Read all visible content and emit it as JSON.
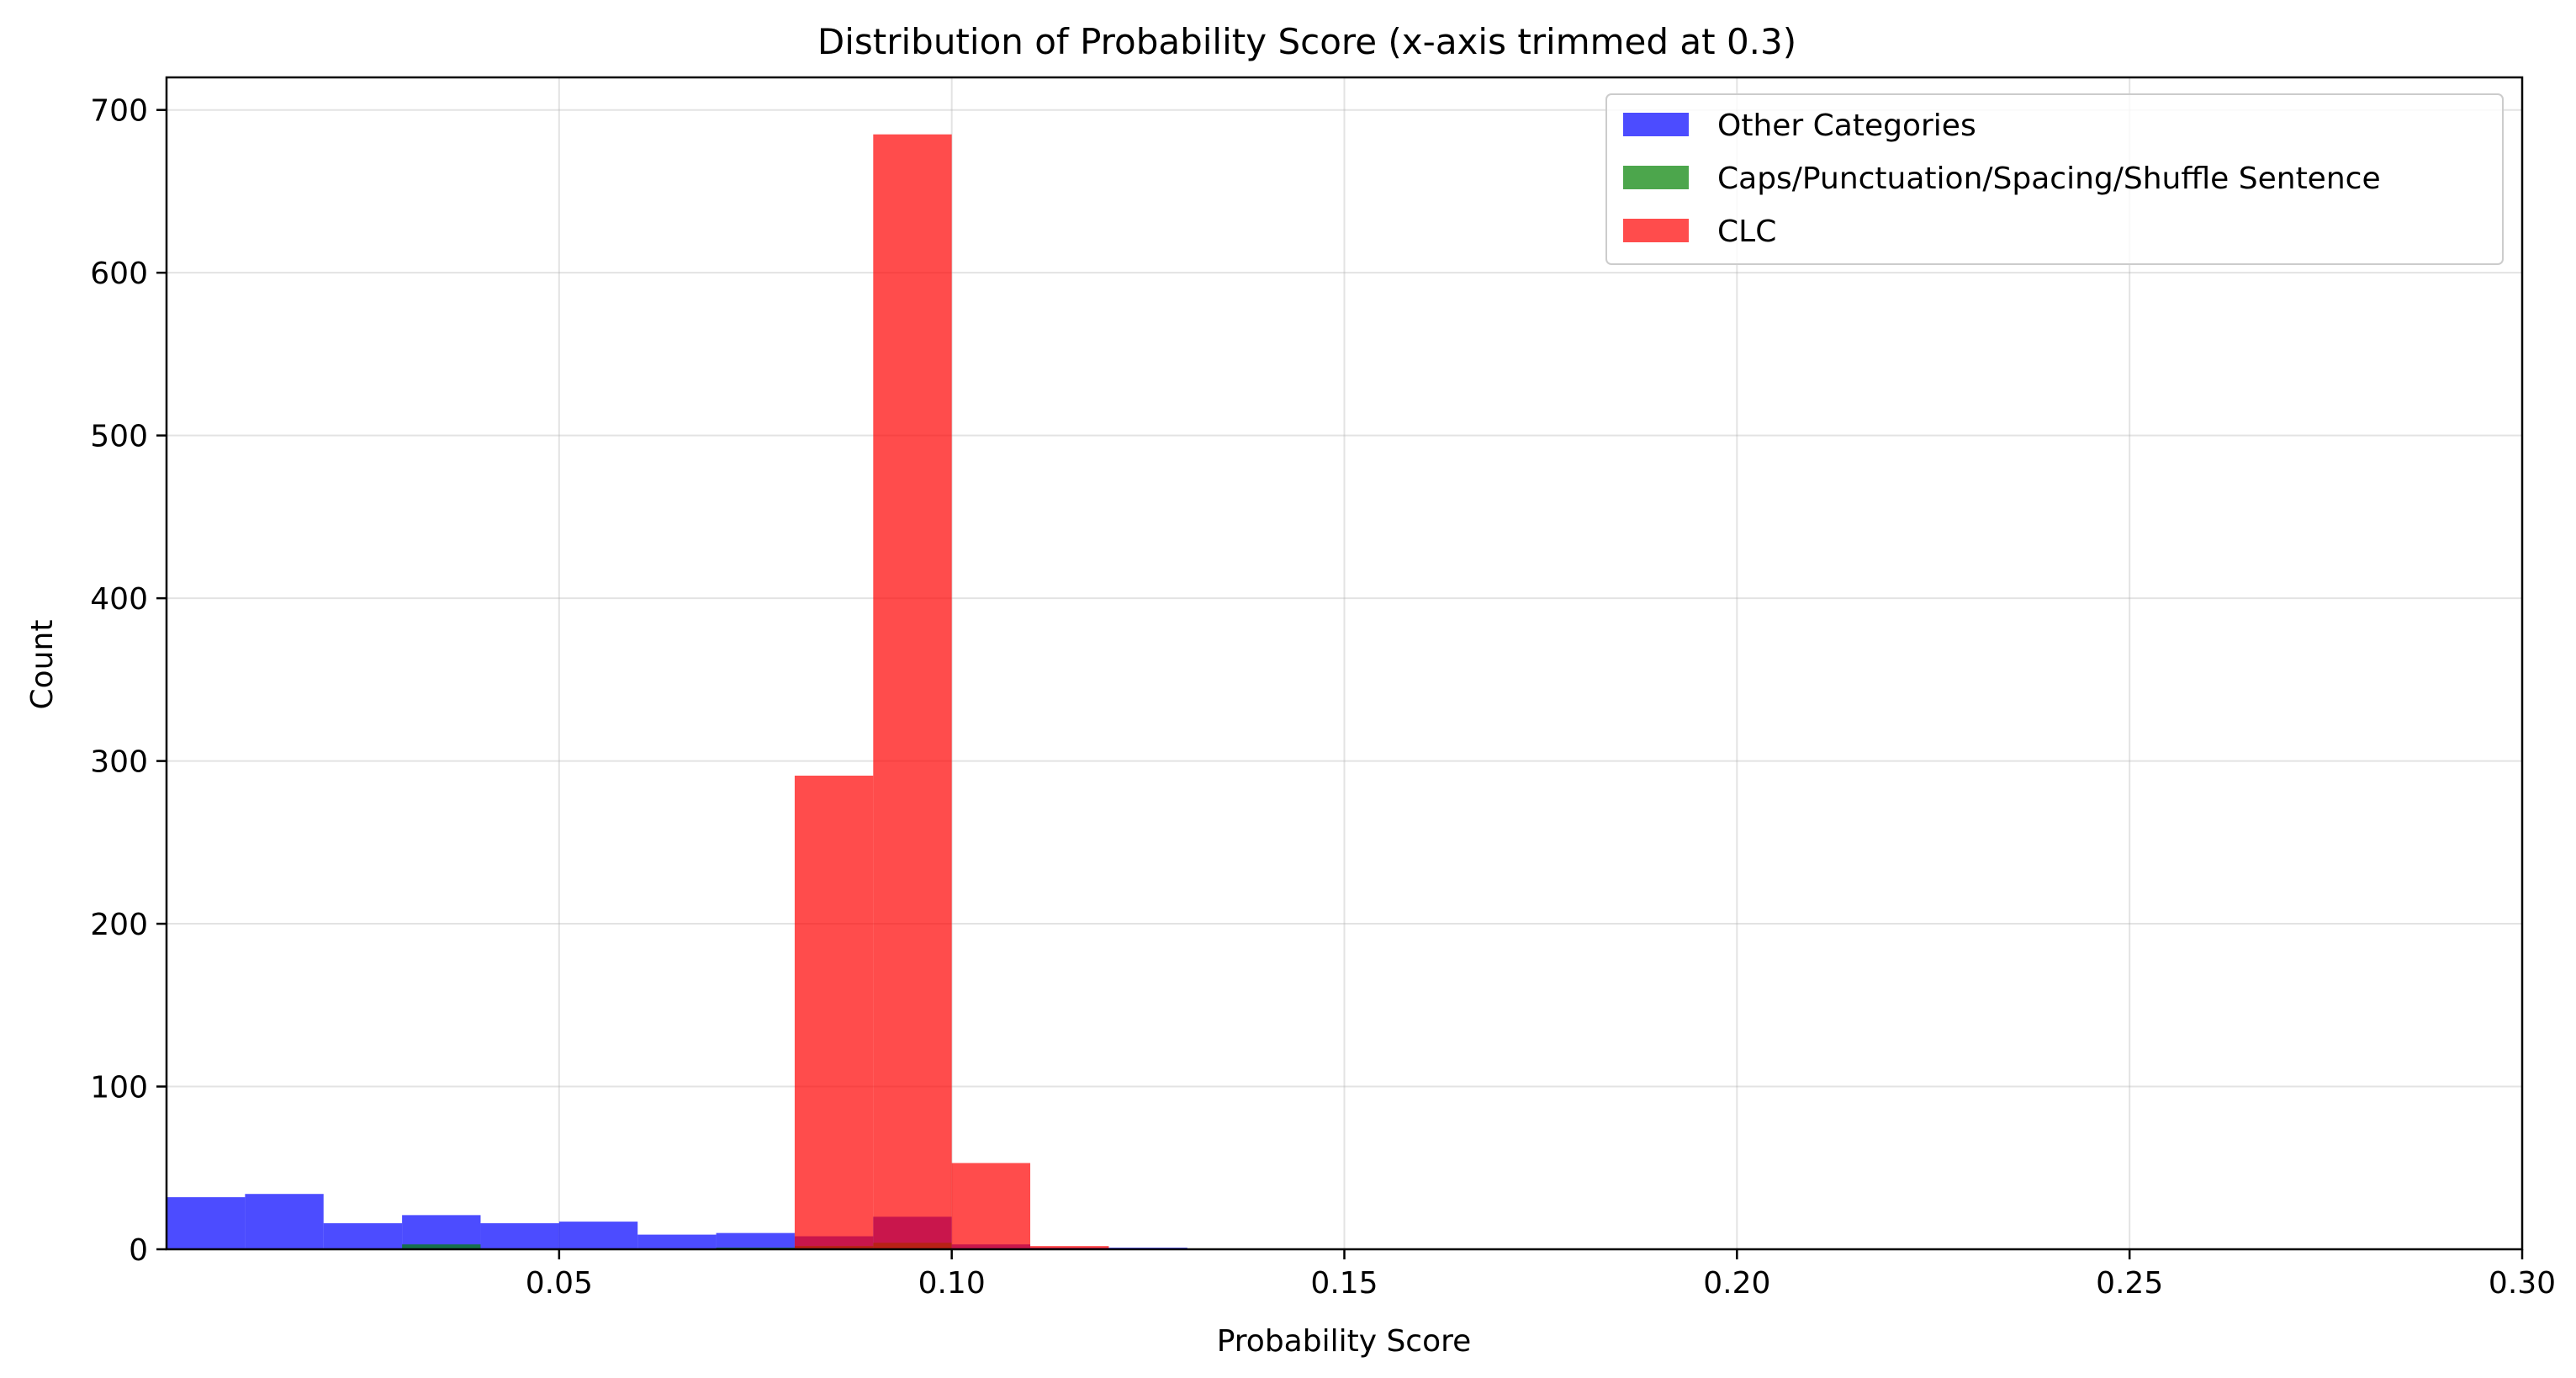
{
  "chart_data": {
    "type": "bar",
    "title": "Distribution of Probability Score (x-axis trimmed at 0.3)",
    "xlabel": "Probability Score",
    "ylabel": "Count",
    "xlim": [
      0.0,
      0.3
    ],
    "ylim": [
      0,
      720
    ],
    "xticks": [
      0.05,
      0.1,
      0.15,
      0.2,
      0.25,
      0.3
    ],
    "xtick_labels": [
      "0.05",
      "0.10",
      "0.15",
      "0.20",
      "0.25",
      "0.30"
    ],
    "yticks": [
      0,
      100,
      200,
      300,
      400,
      500,
      600,
      700
    ],
    "ytick_labels": [
      "0",
      "100",
      "200",
      "300",
      "400",
      "500",
      "600",
      "700"
    ],
    "grid": true,
    "legend_position": "top-right",
    "series": [
      {
        "name": "Other Categories",
        "color": "#0000ff",
        "opacity": 0.7,
        "bins": [
          {
            "x0": 0.0,
            "x1": 0.01,
            "count": 32
          },
          {
            "x0": 0.01,
            "x1": 0.02,
            "count": 34
          },
          {
            "x0": 0.02,
            "x1": 0.03,
            "count": 16
          },
          {
            "x0": 0.03,
            "x1": 0.04,
            "count": 21
          },
          {
            "x0": 0.04,
            "x1": 0.05,
            "count": 16
          },
          {
            "x0": 0.05,
            "x1": 0.06,
            "count": 17
          },
          {
            "x0": 0.06,
            "x1": 0.07,
            "count": 9
          },
          {
            "x0": 0.07,
            "x1": 0.08,
            "count": 10
          },
          {
            "x0": 0.08,
            "x1": 0.09,
            "count": 8
          },
          {
            "x0": 0.09,
            "x1": 0.1,
            "count": 20
          },
          {
            "x0": 0.1,
            "x1": 0.11,
            "count": 3
          },
          {
            "x0": 0.11,
            "x1": 0.12,
            "count": 1
          },
          {
            "x0": 0.12,
            "x1": 0.13,
            "count": 1
          }
        ]
      },
      {
        "name": "Caps/Punctuation/Spacing/Shuffle Sentence",
        "color": "#008000",
        "opacity": 0.7,
        "bins": [
          {
            "x0": 0.03,
            "x1": 0.04,
            "count": 3
          },
          {
            "x0": 0.07,
            "x1": 0.08,
            "count": 1
          },
          {
            "x0": 0.08,
            "x1": 0.09,
            "count": 2
          },
          {
            "x0": 0.09,
            "x1": 0.1,
            "count": 4
          }
        ]
      },
      {
        "name": "CLC",
        "color": "#ff0000",
        "opacity": 0.7,
        "bins": [
          {
            "x0": 0.08,
            "x1": 0.09,
            "count": 291
          },
          {
            "x0": 0.09,
            "x1": 0.1,
            "count": 685
          },
          {
            "x0": 0.1,
            "x1": 0.11,
            "count": 53
          },
          {
            "x0": 0.11,
            "x1": 0.12,
            "count": 2
          }
        ]
      }
    ]
  }
}
